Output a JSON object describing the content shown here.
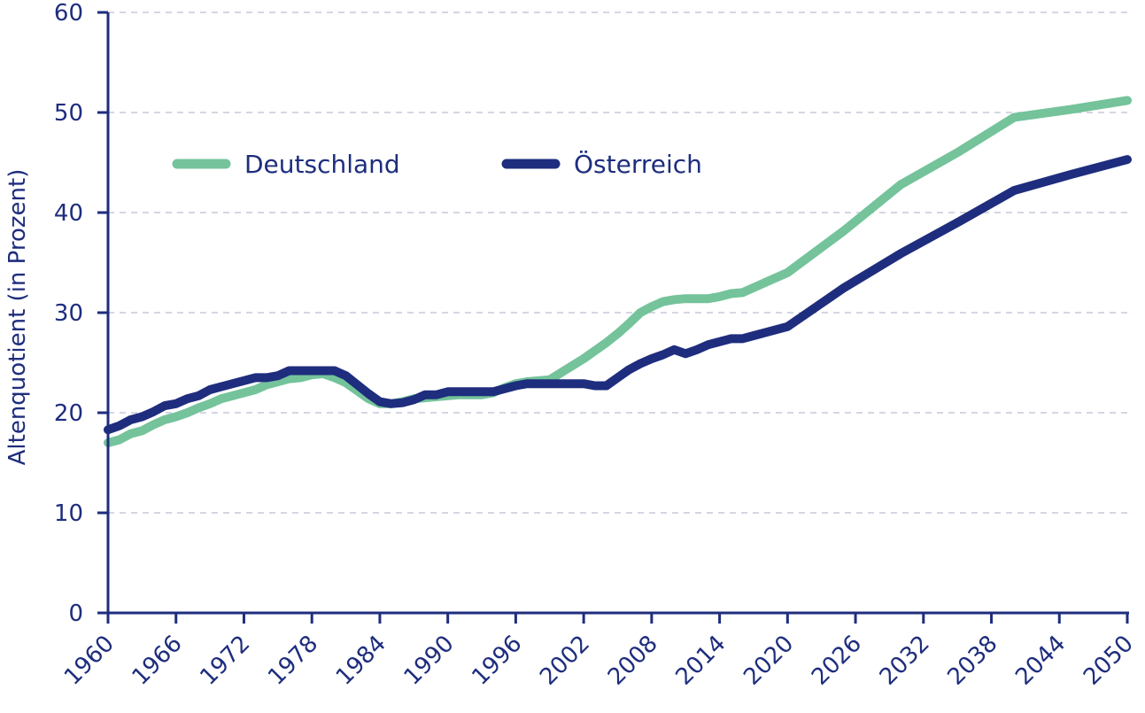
{
  "chart_data": {
    "type": "line",
    "title": "",
    "xlabel": "",
    "ylabel": "Altenquotient (in Prozent)",
    "xlim": [
      1960,
      2050
    ],
    "ylim": [
      0,
      60
    ],
    "x_ticks": [
      "1960",
      "1966",
      "1972",
      "1978",
      "1984",
      "1990",
      "1996",
      "2002",
      "2008",
      "2014",
      "2020",
      "2026",
      "2032",
      "2038",
      "2044",
      "2050"
    ],
    "y_ticks": [
      "0",
      "10",
      "20",
      "30",
      "40",
      "50",
      "60"
    ],
    "grid": "horizontal dashed",
    "legend_position": "top-left",
    "colors": {
      "axis": "#1e2d7d",
      "grid": "#c5c9da",
      "text": "#1e2d7d"
    },
    "series": [
      {
        "name": "Deutschland",
        "color": "#74c39b",
        "points": [
          [
            1960,
            17.0
          ],
          [
            1961,
            17.3
          ],
          [
            1962,
            17.9
          ],
          [
            1963,
            18.2
          ],
          [
            1964,
            18.8
          ],
          [
            1965,
            19.3
          ],
          [
            1966,
            19.6
          ],
          [
            1967,
            20.0
          ],
          [
            1968,
            20.5
          ],
          [
            1969,
            20.9
          ],
          [
            1970,
            21.4
          ],
          [
            1971,
            21.7
          ],
          [
            1972,
            22.0
          ],
          [
            1973,
            22.3
          ],
          [
            1974,
            22.8
          ],
          [
            1975,
            23.1
          ],
          [
            1976,
            23.4
          ],
          [
            1977,
            23.5
          ],
          [
            1978,
            23.8
          ],
          [
            1979,
            23.9
          ],
          [
            1980,
            23.5
          ],
          [
            1981,
            23.0
          ],
          [
            1982,
            22.2
          ],
          [
            1983,
            21.4
          ],
          [
            1984,
            20.9
          ],
          [
            1985,
            20.9
          ],
          [
            1986,
            21.1
          ],
          [
            1987,
            21.4
          ],
          [
            1988,
            21.5
          ],
          [
            1989,
            21.6
          ],
          [
            1990,
            21.7
          ],
          [
            1991,
            21.8
          ],
          [
            1992,
            21.8
          ],
          [
            1993,
            21.8
          ],
          [
            1994,
            22.0
          ],
          [
            1995,
            22.5
          ],
          [
            1996,
            22.9
          ],
          [
            1997,
            23.1
          ],
          [
            1998,
            23.2
          ],
          [
            1999,
            23.3
          ],
          [
            2000,
            24.0
          ],
          [
            2001,
            24.7
          ],
          [
            2002,
            25.4
          ],
          [
            2003,
            26.2
          ],
          [
            2004,
            27.0
          ],
          [
            2005,
            27.9
          ],
          [
            2006,
            28.9
          ],
          [
            2007,
            30.0
          ],
          [
            2008,
            30.6
          ],
          [
            2009,
            31.1
          ],
          [
            2010,
            31.3
          ],
          [
            2011,
            31.4
          ],
          [
            2012,
            31.4
          ],
          [
            2013,
            31.4
          ],
          [
            2014,
            31.6
          ],
          [
            2015,
            31.9
          ],
          [
            2016,
            32.0
          ],
          [
            2017,
            32.5
          ],
          [
            2018,
            33.0
          ],
          [
            2019,
            33.5
          ],
          [
            2020,
            34.0
          ],
          [
            2025,
            38.2
          ],
          [
            2030,
            42.8
          ],
          [
            2035,
            46.0
          ],
          [
            2040,
            49.5
          ],
          [
            2045,
            50.3
          ],
          [
            2050,
            51.2
          ]
        ]
      },
      {
        "name": "Österreich",
        "color": "#1e2d7d",
        "points": [
          [
            1960,
            18.3
          ],
          [
            1961,
            18.7
          ],
          [
            1962,
            19.3
          ],
          [
            1963,
            19.6
          ],
          [
            1964,
            20.1
          ],
          [
            1965,
            20.7
          ],
          [
            1966,
            20.9
          ],
          [
            1967,
            21.4
          ],
          [
            1968,
            21.7
          ],
          [
            1969,
            22.3
          ],
          [
            1970,
            22.6
          ],
          [
            1971,
            22.9
          ],
          [
            1972,
            23.2
          ],
          [
            1973,
            23.5
          ],
          [
            1974,
            23.5
          ],
          [
            1975,
            23.7
          ],
          [
            1976,
            24.2
          ],
          [
            1977,
            24.2
          ],
          [
            1978,
            24.2
          ],
          [
            1979,
            24.2
          ],
          [
            1980,
            24.2
          ],
          [
            1981,
            23.7
          ],
          [
            1982,
            22.8
          ],
          [
            1983,
            21.9
          ],
          [
            1984,
            21.1
          ],
          [
            1985,
            20.9
          ],
          [
            1986,
            21.0
          ],
          [
            1987,
            21.3
          ],
          [
            1988,
            21.8
          ],
          [
            1989,
            21.8
          ],
          [
            1990,
            22.1
          ],
          [
            1991,
            22.1
          ],
          [
            1992,
            22.1
          ],
          [
            1993,
            22.1
          ],
          [
            1994,
            22.1
          ],
          [
            1995,
            22.4
          ],
          [
            1996,
            22.7
          ],
          [
            1997,
            22.9
          ],
          [
            1998,
            22.9
          ],
          [
            1999,
            22.9
          ],
          [
            2000,
            22.9
          ],
          [
            2001,
            22.9
          ],
          [
            2002,
            22.9
          ],
          [
            2003,
            22.7
          ],
          [
            2004,
            22.7
          ],
          [
            2005,
            23.5
          ],
          [
            2006,
            24.3
          ],
          [
            2007,
            24.9
          ],
          [
            2008,
            25.4
          ],
          [
            2009,
            25.8
          ],
          [
            2010,
            26.3
          ],
          [
            2011,
            25.9
          ],
          [
            2012,
            26.3
          ],
          [
            2013,
            26.8
          ],
          [
            2014,
            27.1
          ],
          [
            2015,
            27.4
          ],
          [
            2016,
            27.4
          ],
          [
            2017,
            27.7
          ],
          [
            2018,
            28.0
          ],
          [
            2019,
            28.3
          ],
          [
            2020,
            28.6
          ],
          [
            2025,
            32.5
          ],
          [
            2030,
            35.9
          ],
          [
            2035,
            39.0
          ],
          [
            2040,
            42.2
          ],
          [
            2045,
            43.8
          ],
          [
            2050,
            45.3
          ]
        ]
      }
    ]
  }
}
